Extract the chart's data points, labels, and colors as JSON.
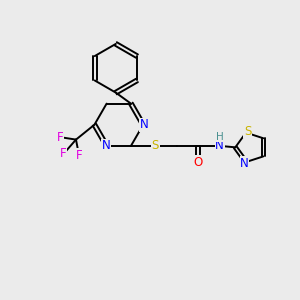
{
  "bg_color": "#ebebeb",
  "bond_color": "#000000",
  "atom_colors": {
    "N": "#0000ff",
    "S": "#c8b400",
    "O": "#ff0000",
    "F": "#e000e0",
    "C": "#000000"
  },
  "font_size": 8.5,
  "fig_size": [
    3.0,
    3.0
  ],
  "dpi": 100
}
